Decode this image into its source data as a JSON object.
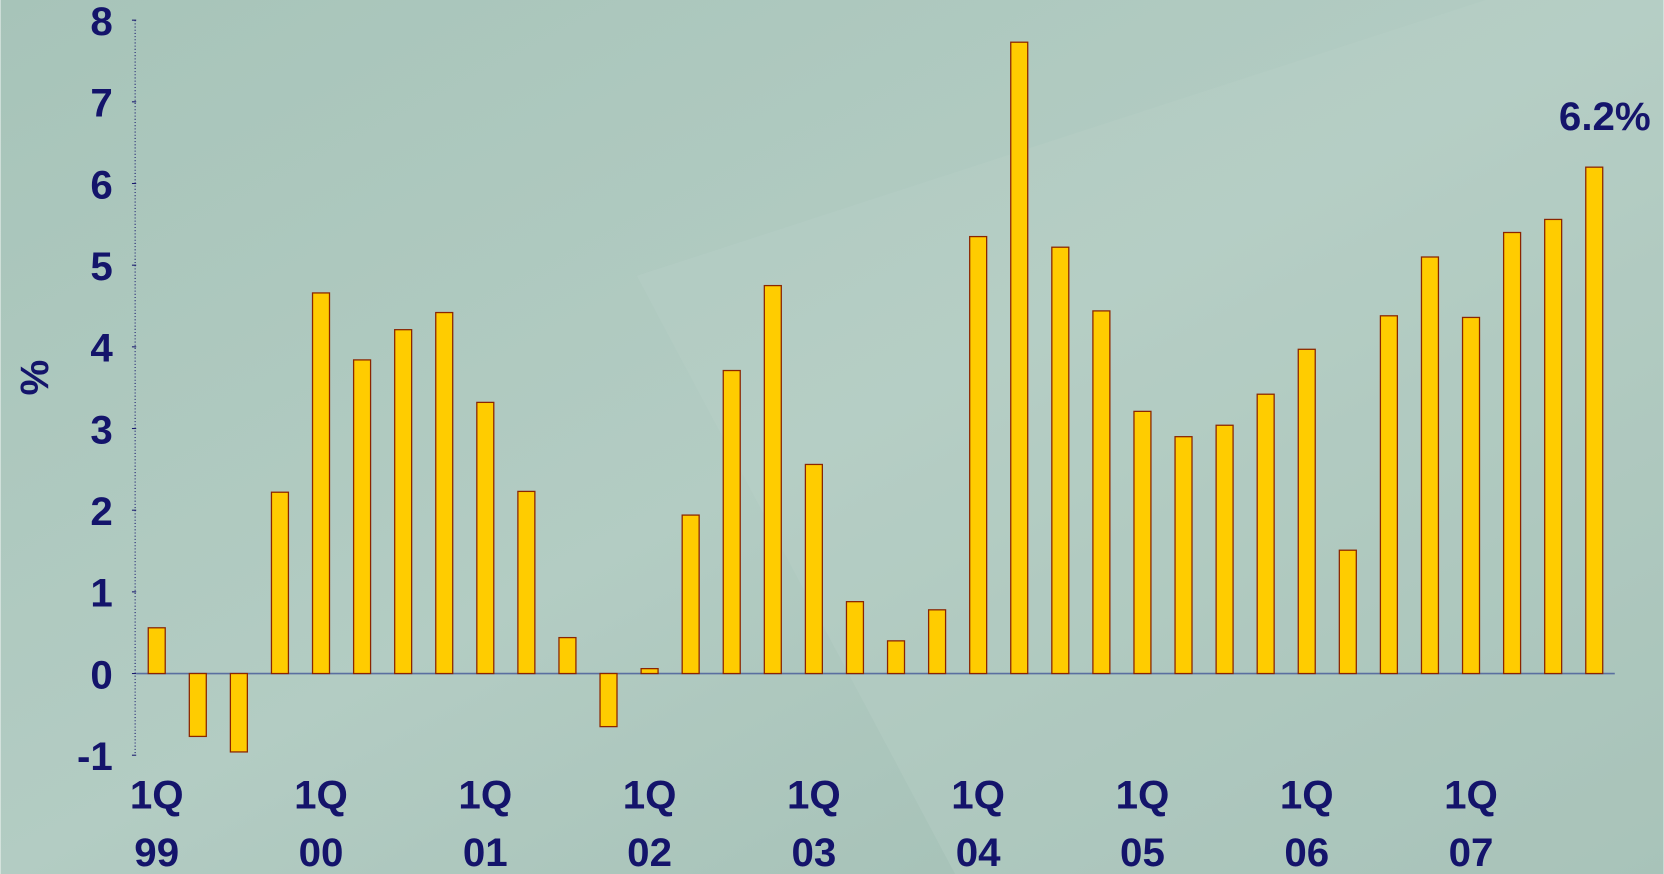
{
  "chart_data": {
    "type": "bar",
    "y_label": "%",
    "categories": [
      "1Q 99",
      null,
      null,
      null,
      "1Q 00",
      null,
      null,
      null,
      "1Q 01",
      null,
      null,
      null,
      "1Q 02",
      null,
      null,
      null,
      "1Q 03",
      null,
      null,
      null,
      "1Q 04",
      null,
      null,
      null,
      "1Q 05",
      null,
      null,
      null,
      "1Q 06",
      null,
      null,
      null,
      "1Q 07",
      null,
      null,
      null
    ],
    "values": [
      0.56,
      -0.77,
      -0.96,
      2.22,
      4.66,
      3.84,
      4.21,
      4.42,
      3.32,
      2.23,
      0.44,
      -0.65,
      0.06,
      1.94,
      3.71,
      4.75,
      2.56,
      0.88,
      0.4,
      0.78,
      5.35,
      7.73,
      5.22,
      4.44,
      3.21,
      2.9,
      3.04,
      3.42,
      3.97,
      1.51,
      4.38,
      5.1,
      4.36,
      5.4,
      5.56,
      6.2
    ],
    "value_labels": [
      null,
      null,
      null,
      null,
      null,
      null,
      null,
      null,
      null,
      null,
      null,
      null,
      null,
      null,
      null,
      null,
      null,
      null,
      null,
      null,
      null,
      null,
      null,
      null,
      null,
      null,
      null,
      null,
      null,
      null,
      null,
      null,
      null,
      null,
      null,
      "6.2%"
    ],
    "color": "#ffcc00",
    "edge_color": "#8b2500",
    "ylim": [
      -1,
      8
    ],
    "yticks": [
      -1,
      0,
      1,
      2,
      3,
      4,
      5,
      6,
      7,
      8
    ]
  }
}
